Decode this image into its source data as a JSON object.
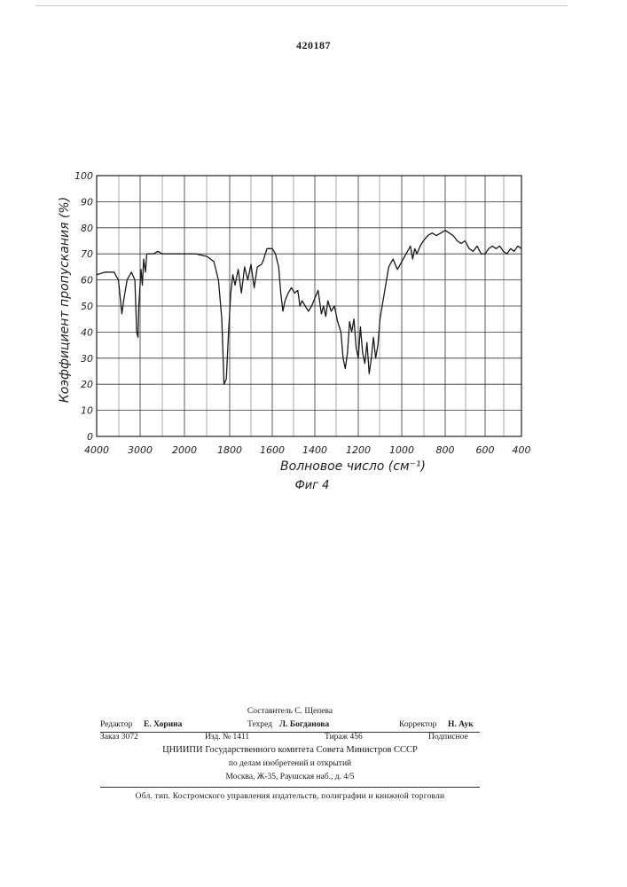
{
  "patent_number": "420187",
  "chart_data": {
    "type": "line",
    "ylabel": "Коэффициент пропускания (%)",
    "xlabel": "Волновое число (см⁻¹)",
    "caption": "Фиг 4",
    "xlim": [
      4000,
      400
    ],
    "ylim": [
      0,
      100
    ],
    "y_ticks": [
      0,
      10,
      20,
      30,
      40,
      50,
      60,
      70,
      80,
      90,
      100
    ],
    "x_ticks": [
      {
        "value": 4000,
        "label": "4000"
      },
      {
        "value": 3000,
        "label": "3000"
      },
      {
        "value": 2000,
        "label": "2000"
      },
      {
        "value": 1800,
        "label": "1800"
      },
      {
        "value": 1600,
        "label": "1600"
      },
      {
        "value": 1400,
        "label": "1400"
      },
      {
        "value": 1200,
        "label": "1200"
      },
      {
        "value": 1000,
        "label": "1000"
      },
      {
        "value": 800,
        "label": "800"
      },
      {
        "value": 600,
        "label": "600"
      },
      {
        "value": 400,
        "label": "400"
      }
    ],
    "grid": true,
    "series": [
      {
        "color": "#1a1a1a",
        "points": [
          [
            4000,
            62
          ],
          [
            3800,
            63
          ],
          [
            3600,
            63
          ],
          [
            3500,
            60
          ],
          [
            3450,
            52
          ],
          [
            3420,
            47
          ],
          [
            3380,
            52
          ],
          [
            3300,
            60
          ],
          [
            3200,
            63
          ],
          [
            3120,
            60
          ],
          [
            3080,
            40
          ],
          [
            3050,
            38
          ],
          [
            3030,
            50
          ],
          [
            2980,
            64
          ],
          [
            2950,
            58
          ],
          [
            2920,
            68
          ],
          [
            2880,
            63
          ],
          [
            2850,
            70
          ],
          [
            2700,
            70
          ],
          [
            2600,
            71
          ],
          [
            2500,
            70
          ],
          [
            2200,
            70
          ],
          [
            2000,
            70
          ],
          [
            1950,
            70
          ],
          [
            1900,
            69
          ],
          [
            1870,
            67
          ],
          [
            1850,
            60
          ],
          [
            1835,
            45
          ],
          [
            1825,
            20
          ],
          [
            1815,
            22
          ],
          [
            1805,
            40
          ],
          [
            1795,
            55
          ],
          [
            1785,
            62
          ],
          [
            1775,
            58
          ],
          [
            1760,
            64
          ],
          [
            1745,
            55
          ],
          [
            1730,
            65
          ],
          [
            1715,
            60
          ],
          [
            1700,
            66
          ],
          [
            1685,
            57
          ],
          [
            1670,
            65
          ],
          [
            1650,
            66
          ],
          [
            1640,
            68
          ],
          [
            1625,
            72
          ],
          [
            1600,
            72
          ],
          [
            1585,
            70
          ],
          [
            1570,
            65
          ],
          [
            1560,
            55
          ],
          [
            1550,
            48
          ],
          [
            1540,
            52
          ],
          [
            1525,
            55
          ],
          [
            1510,
            57
          ],
          [
            1495,
            55
          ],
          [
            1480,
            56
          ],
          [
            1470,
            50
          ],
          [
            1460,
            52
          ],
          [
            1445,
            50
          ],
          [
            1430,
            48
          ],
          [
            1415,
            50
          ],
          [
            1400,
            53
          ],
          [
            1385,
            56
          ],
          [
            1370,
            47
          ],
          [
            1360,
            50
          ],
          [
            1350,
            46
          ],
          [
            1340,
            52
          ],
          [
            1325,
            48
          ],
          [
            1310,
            50
          ],
          [
            1295,
            44
          ],
          [
            1280,
            40
          ],
          [
            1270,
            30
          ],
          [
            1260,
            26
          ],
          [
            1250,
            32
          ],
          [
            1240,
            44
          ],
          [
            1230,
            40
          ],
          [
            1220,
            45
          ],
          [
            1210,
            34
          ],
          [
            1200,
            30
          ],
          [
            1190,
            42
          ],
          [
            1180,
            32
          ],
          [
            1170,
            28
          ],
          [
            1160,
            36
          ],
          [
            1150,
            24
          ],
          [
            1140,
            30
          ],
          [
            1130,
            38
          ],
          [
            1120,
            30
          ],
          [
            1110,
            35
          ],
          [
            1100,
            45
          ],
          [
            1090,
            50
          ],
          [
            1080,
            55
          ],
          [
            1060,
            65
          ],
          [
            1040,
            68
          ],
          [
            1020,
            64
          ],
          [
            1000,
            67
          ],
          [
            980,
            70
          ],
          [
            960,
            73
          ],
          [
            950,
            68
          ],
          [
            940,
            72
          ],
          [
            930,
            70
          ],
          [
            915,
            73
          ],
          [
            900,
            75
          ],
          [
            880,
            77
          ],
          [
            860,
            78
          ],
          [
            840,
            77
          ],
          [
            820,
            78
          ],
          [
            800,
            79
          ],
          [
            780,
            78
          ],
          [
            760,
            77
          ],
          [
            740,
            75
          ],
          [
            720,
            74
          ],
          [
            700,
            75
          ],
          [
            680,
            72
          ],
          [
            660,
            71
          ],
          [
            640,
            73
          ],
          [
            620,
            70
          ],
          [
            600,
            70
          ],
          [
            580,
            72
          ],
          [
            560,
            73
          ],
          [
            540,
            72
          ],
          [
            520,
            73
          ],
          [
            500,
            71
          ],
          [
            480,
            70
          ],
          [
            460,
            72
          ],
          [
            440,
            71
          ],
          [
            420,
            73
          ],
          [
            400,
            72
          ]
        ]
      }
    ]
  },
  "footer": {
    "compiler": "Составитель С. Щепева",
    "editor_label": "Редактор",
    "editor_name": "Е. Хорина",
    "techred_label": "Техред",
    "techred_name": "Л. Богданова",
    "corrector_label": "Корректор",
    "corrector_name": "Н. Аук",
    "order": "Заказ 3072",
    "edition": "Изд. № 1411",
    "circulation": "Тираж 456",
    "subscription": "Подписное",
    "org_line1": "ЦНИИПИ Государственного комитета Совета Министров СССР",
    "org_line2": "по делам изобретений и открытий",
    "org_line3": "Москва, Ж-35, Раушская наб., д. 4/5",
    "printer": "Обл. тип. Костромского управления издательств, полиграфии и книжной торговли"
  }
}
